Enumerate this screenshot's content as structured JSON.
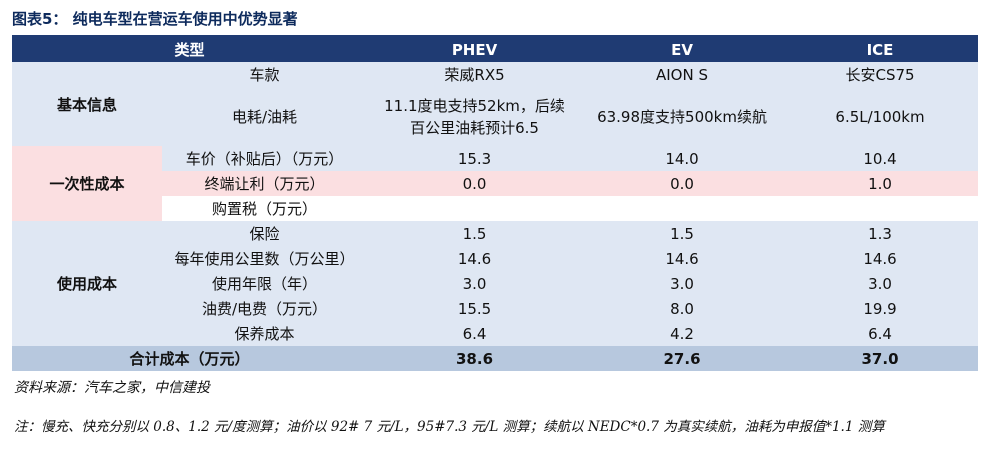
{
  "figure_title": "图表5： 纯电车型在营运车使用中优势显著",
  "header": [
    "类型",
    "PHEV",
    "EV",
    "ICE"
  ],
  "sections": [
    {
      "label": "基本信息",
      "rows": [
        {
          "item": "车款",
          "phev": "荣威RX5",
          "ev": "AION S",
          "ice": "长安CS75"
        },
        {
          "item": "电耗/油耗",
          "phev_line1": "11.1度电支持52km，后续",
          "phev_line2": "百公里油耗预计6.5",
          "ev": "63.98度支持500km续航",
          "ice": "6.5L/100km"
        }
      ]
    },
    {
      "label": "一次性成本",
      "rows": [
        {
          "item": "车价（补贴后）（万元）",
          "phev": "15.3",
          "ev": "14.0",
          "ice": "10.4"
        },
        {
          "item": "终端让利（万元）",
          "phev": "0.0",
          "ev": "0.0",
          "ice": "1.0"
        },
        {
          "item": "购置税（万元）",
          "phev": "",
          "ev": "",
          "ice": ""
        }
      ]
    },
    {
      "label": "使用成本",
      "rows": [
        {
          "item": "保险",
          "phev": "1.5",
          "ev": "1.5",
          "ice": "1.3"
        },
        {
          "item": "每年使用公里数（万公里）",
          "phev": "14.6",
          "ev": "14.6",
          "ice": "14.6"
        },
        {
          "item": "使用年限（年）",
          "phev": "3.0",
          "ev": "3.0",
          "ice": "3.0"
        },
        {
          "item": "油费/电费（万元）",
          "phev": "15.5",
          "ev": "8.0",
          "ice": "19.9"
        },
        {
          "item": "保养成本",
          "phev": "6.4",
          "ev": "4.2",
          "ice": "6.4"
        }
      ]
    }
  ],
  "total": {
    "item": "合计成本（万元）",
    "phev": "38.6",
    "ev": "27.6",
    "ice": "37.0"
  },
  "source": "资料来源：汽车之家，中信建投",
  "note": "注：慢充、快充分别以 0.8、1.2 元/度测算；油价以 92# 7 元/L，95#7.3 元/L 测算；续航以 NEDC*0.7 为真实续航，油耗为申报值*1.1 测算"
}
